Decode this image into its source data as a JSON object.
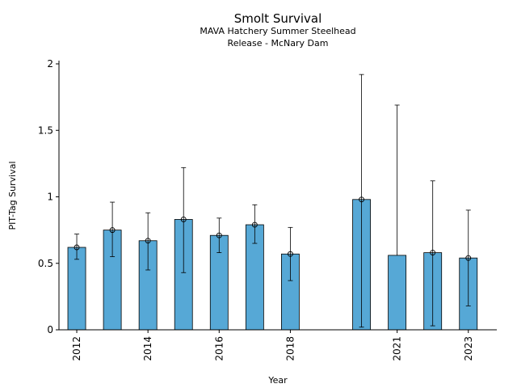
{
  "chart_data": {
    "type": "bar",
    "title": "Smolt Survival",
    "subtitle_lines": [
      "MAVA Hatchery Summer Steelhead",
      "Release - McNary Dam"
    ],
    "xlabel": "Year",
    "ylabel": "PIT-Tag Survival",
    "ylim": [
      0,
      2
    ],
    "yticks": [
      "0",
      "0.5",
      "1",
      "1.5",
      "2"
    ],
    "xticks": [
      "2012",
      "2014",
      "2016",
      "2018",
      "2021",
      "2023"
    ],
    "bar_color": "#56a8d6",
    "grid": false,
    "legend": "none",
    "x": [
      2012,
      2013,
      2014,
      2015,
      2016,
      2017,
      2018,
      2020,
      2021,
      2022,
      2023
    ],
    "values": [
      0.62,
      0.75,
      0.67,
      0.83,
      0.71,
      0.79,
      0.57,
      0.98,
      0.56,
      0.58,
      0.54
    ],
    "points": [
      0.62,
      0.75,
      0.67,
      0.83,
      0.71,
      0.79,
      0.57,
      0.98,
      null,
      0.58,
      0.54
    ],
    "error_low": [
      0.53,
      0.55,
      0.45,
      0.43,
      0.58,
      0.65,
      0.37,
      0.02,
      null,
      0.03,
      0.18
    ],
    "error_high": [
      0.72,
      0.96,
      0.88,
      1.22,
      0.84,
      0.94,
      0.77,
      1.92,
      1.69,
      1.12,
      0.9
    ]
  }
}
